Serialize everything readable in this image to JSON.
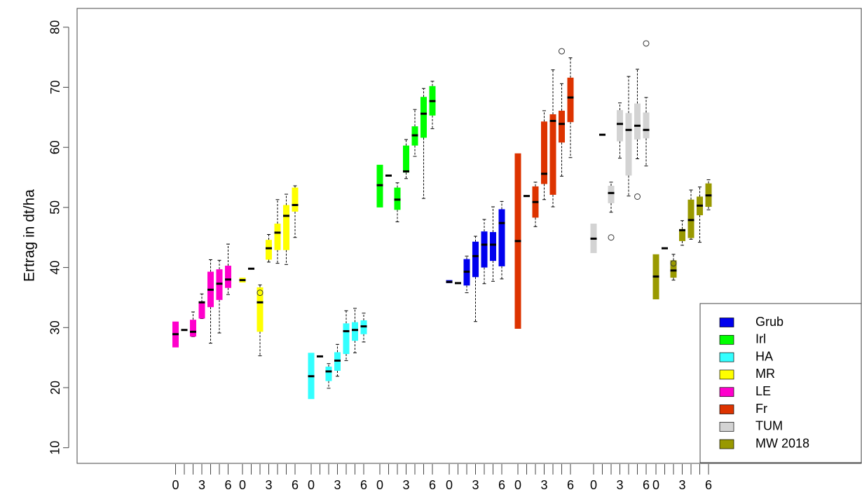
{
  "chart_data": {
    "type": "boxplot",
    "ylabel": "Ertrag in dt/ha",
    "ylim": [
      5,
      82
    ],
    "yticks": [
      "10",
      "20",
      "30",
      "40",
      "50",
      "60",
      "70",
      "80"
    ],
    "xtick_labels": [
      "0",
      "3",
      "6"
    ],
    "groups": [
      {
        "name": "LE",
        "color": "#ff00cc",
        "boxes": [
          {
            "q1": 26.7,
            "med": 28.9,
            "q3": 31.0
          },
          {
            "q1": 29.6,
            "med": 29.6,
            "q3": 29.6
          },
          {
            "q1": 28.5,
            "med": 29.3,
            "q3": 31.3,
            "wlo": 28.5,
            "whi": 32.6
          },
          {
            "q1": 31.5,
            "med": 34.2,
            "q3": 34.2,
            "wlo": 31.5,
            "whi": 35.6
          },
          {
            "q1": 33.4,
            "med": 36.3,
            "q3": 39.3,
            "wlo": 27.4,
            "whi": 41.3
          },
          {
            "q1": 34.6,
            "med": 37.3,
            "q3": 39.7,
            "wlo": 29.1,
            "whi": 41.2
          },
          {
            "q1": 36.6,
            "med": 38.0,
            "q3": 40.3,
            "wlo": 35.5,
            "whi": 43.9
          }
        ]
      },
      {
        "name": "MR",
        "color": "#ffff00",
        "boxes": [
          {
            "q1": 37.5,
            "med": 37.9,
            "q3": 38.3
          },
          {
            "q1": 39.8,
            "med": 39.8,
            "q3": 39.8
          },
          {
            "q1": 29.3,
            "med": 34.2,
            "q3": 36.7,
            "wlo": 25.3,
            "whi": 37.1,
            "out": [
              35.8
            ]
          },
          {
            "q1": 41.3,
            "med": 43.2,
            "q3": 44.6,
            "wlo": 40.9,
            "whi": 45.5
          },
          {
            "q1": 42.9,
            "med": 45.8,
            "q3": 47.3,
            "wlo": 40.7,
            "whi": 51.3
          },
          {
            "q1": 42.9,
            "med": 48.6,
            "q3": 50.4,
            "wlo": 40.5,
            "whi": 52.2
          },
          {
            "q1": 49.3,
            "med": 50.4,
            "q3": 53.3,
            "wlo": 45.0,
            "whi": 53.6
          }
        ]
      },
      {
        "name": "HA",
        "color": "#33ffff",
        "boxes": [
          {
            "q1": 18.1,
            "med": 21.9,
            "q3": 25.8
          },
          {
            "q1": 25.2,
            "med": 25.2,
            "q3": 25.2
          },
          {
            "q1": 21.1,
            "med": 22.7,
            "q3": 23.5,
            "wlo": 19.9,
            "whi": 24.0
          },
          {
            "q1": 22.8,
            "med": 24.5,
            "q3": 25.9,
            "wlo": 21.9,
            "whi": 27.2
          },
          {
            "q1": 25.6,
            "med": 29.4,
            "q3": 30.7,
            "wlo": 24.5,
            "whi": 32.8
          },
          {
            "q1": 27.8,
            "med": 29.6,
            "q3": 30.9,
            "wlo": 25.8,
            "whi": 33.2
          },
          {
            "q1": 28.9,
            "med": 30.2,
            "q3": 31.2,
            "wlo": 27.6,
            "whi": 32.4
          }
        ]
      },
      {
        "name": "Irl",
        "color": "#00ff00",
        "boxes": [
          {
            "q1": 50.0,
            "med": 53.7,
            "q3": 57.1
          },
          {
            "q1": 55.3,
            "med": 55.3,
            "q3": 55.3
          },
          {
            "q1": 49.6,
            "med": 51.3,
            "q3": 53.3,
            "wlo": 47.6,
            "whi": 54.1
          },
          {
            "q1": 55.8,
            "med": 56.0,
            "q3": 60.3,
            "wlo": 54.8,
            "whi": 61.3
          },
          {
            "q1": 60.3,
            "med": 62.0,
            "q3": 63.5,
            "wlo": 58.5,
            "whi": 66.3
          },
          {
            "q1": 61.6,
            "med": 65.6,
            "q3": 68.4,
            "wlo": 51.5,
            "whi": 69.8
          },
          {
            "q1": 65.3,
            "med": 67.7,
            "q3": 70.2,
            "wlo": 63.1,
            "whi": 71.0
          }
        ]
      },
      {
        "name": "Grub",
        "color": "#0000ee",
        "boxes": [
          {
            "q1": 37.4,
            "med": 37.6,
            "q3": 37.9
          },
          {
            "q1": 37.4,
            "med": 37.4,
            "q3": 37.4
          },
          {
            "q1": 37.0,
            "med": 39.3,
            "q3": 41.4,
            "wlo": 35.8,
            "whi": 41.9
          },
          {
            "q1": 38.4,
            "med": 41.9,
            "q3": 44.3,
            "wlo": 31.0,
            "whi": 45.2
          },
          {
            "q1": 40.0,
            "med": 43.8,
            "q3": 46.0,
            "wlo": 37.3,
            "whi": 48.0
          },
          {
            "q1": 41.1,
            "med": 43.8,
            "q3": 45.9,
            "wlo": 37.7,
            "whi": 50.1
          },
          {
            "q1": 40.2,
            "med": 47.4,
            "q3": 49.7,
            "wlo": 38.1,
            "whi": 51.0
          }
        ]
      },
      {
        "name": "Fr",
        "color": "#dd3300",
        "boxes": [
          {
            "q1": 29.8,
            "med": 44.4,
            "q3": 59.0
          },
          {
            "q1": 51.9,
            "med": 51.9,
            "q3": 51.9
          },
          {
            "q1": 48.3,
            "med": 50.9,
            "q3": 53.5,
            "wlo": 46.8,
            "whi": 54.2
          },
          {
            "q1": 53.9,
            "med": 55.6,
            "q3": 64.3,
            "wlo": 51.3,
            "whi": 66.1
          },
          {
            "q1": 52.1,
            "med": 64.4,
            "q3": 65.5,
            "wlo": 50.1,
            "whi": 72.9
          },
          {
            "q1": 60.8,
            "med": 63.9,
            "q3": 66.1,
            "wlo": 55.2,
            "whi": 70.6,
            "out": [
              76.0
            ]
          },
          {
            "q1": 64.2,
            "med": 68.3,
            "q3": 71.6,
            "wlo": 58.3,
            "whi": 74.9
          }
        ]
      },
      {
        "name": "TUM",
        "color": "#d3d3d3",
        "boxes": [
          {
            "q1": 42.4,
            "med": 44.8,
            "q3": 47.3
          },
          {
            "q1": 62.1,
            "med": 62.1,
            "q3": 62.1
          },
          {
            "q1": 50.7,
            "med": 52.4,
            "q3": 53.6,
            "wlo": 49.2,
            "whi": 54.2,
            "out": [
              45.0
            ]
          },
          {
            "q1": 61.0,
            "med": 63.9,
            "q3": 66.2,
            "wlo": 58.2,
            "whi": 67.4
          },
          {
            "q1": 55.3,
            "med": 62.9,
            "q3": 65.7,
            "wlo": 51.9,
            "whi": 71.8
          },
          {
            "q1": 61.3,
            "med": 63.6,
            "q3": 67.3,
            "wlo": 58.1,
            "whi": 73.0,
            "out": [
              51.8
            ]
          },
          {
            "q1": 61.5,
            "med": 62.9,
            "q3": 65.8,
            "wlo": 56.9,
            "whi": 68.3,
            "out": [
              77.3
            ]
          }
        ]
      },
      {
        "name": "MW 2018",
        "color": "#999900",
        "boxes": [
          {
            "q1": 34.7,
            "med": 38.5,
            "q3": 42.2
          },
          {
            "q1": 43.2,
            "med": 43.2,
            "q3": 43.2
          },
          {
            "q1": 38.3,
            "med": 39.5,
            "q3": 41.2,
            "wlo": 37.9,
            "whi": 42.2,
            "out": [
              40.7
            ]
          },
          {
            "q1": 44.4,
            "med": 46.2,
            "q3": 46.4,
            "wlo": 43.7,
            "whi": 47.8
          },
          {
            "q1": 44.9,
            "med": 47.9,
            "q3": 51.3,
            "wlo": 44.7,
            "whi": 52.9
          },
          {
            "q1": 48.7,
            "med": 50.3,
            "q3": 51.8,
            "wlo": 44.2,
            "whi": 53.4
          },
          {
            "q1": 50.1,
            "med": 52.0,
            "q3": 54.0,
            "wlo": 49.6,
            "whi": 54.6
          }
        ]
      }
    ],
    "legend": {
      "position": "bottom-right",
      "order": [
        "Grub",
        "Irl",
        "HA",
        "MR",
        "LE",
        "Fr",
        "TUM",
        "MW 2018"
      ]
    }
  }
}
